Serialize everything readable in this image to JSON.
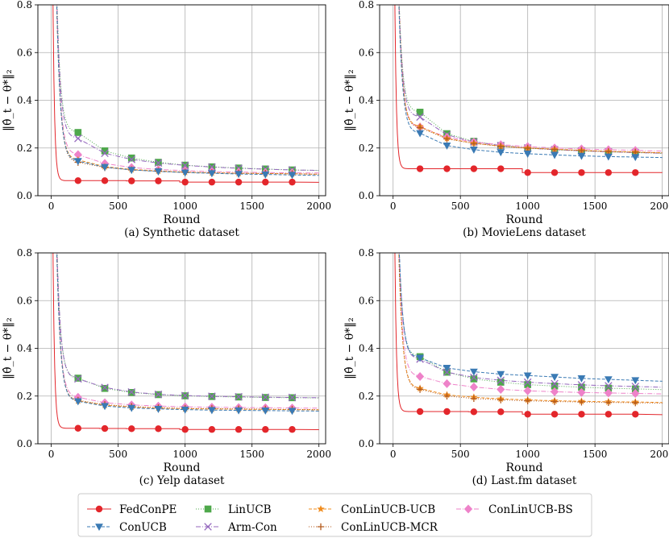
{
  "ylabel": "‖θ̂_t − θ*‖₂",
  "xlabel": "Round",
  "legend": [
    {
      "name": "FedConPE",
      "color": "#e3262b",
      "marker": "circle",
      "dash": ""
    },
    {
      "name": "ConUCB",
      "color": "#3a7ab4",
      "marker": "tri_down",
      "dash": "4,2"
    },
    {
      "name": "LinUCB",
      "color": "#4ea84b",
      "marker": "square",
      "dash": "1,2"
    },
    {
      "name": "Arm-Con",
      "color": "#9467bd",
      "marker": "x",
      "dash": "6,2,1,2"
    },
    {
      "name": "ConLinUCB-UCB",
      "color": "#f08c1e",
      "marker": "star",
      "dash": "4,2"
    },
    {
      "name": "ConLinUCB-MCR",
      "color": "#b35a1c",
      "marker": "plus",
      "dash": "1,2"
    },
    {
      "name": "ConLinUCB-BS",
      "color": "#ee82c9",
      "marker": "diamond",
      "dash": "6,2,1,2"
    }
  ],
  "chart_data": [
    {
      "type": "line",
      "caption": "(a) Synthetic dataset",
      "xlabel": "Round",
      "ylabel": "‖θ̂_t − θ*‖₂",
      "xlim": [
        -100,
        2050
      ],
      "ylim": [
        0,
        0.8
      ],
      "xticks": [
        0,
        500,
        1000,
        1500,
        2000
      ],
      "yticks": [
        0.0,
        0.2,
        0.4,
        0.6,
        0.8
      ],
      "marker_x": [
        200,
        400,
        600,
        800,
        1000,
        1200,
        1400,
        1600,
        1800
      ],
      "series": [
        {
          "name": "FedConPE",
          "values": [
            0.063,
            0.063,
            0.062,
            0.062,
            0.057,
            0.057,
            0.057,
            0.057,
            0.057
          ],
          "end": 0.056
        },
        {
          "name": "ConUCB",
          "values": [
            0.145,
            0.12,
            0.108,
            0.102,
            0.097,
            0.094,
            0.091,
            0.089,
            0.087
          ],
          "end": 0.085
        },
        {
          "name": "LinUCB",
          "values": [
            0.265,
            0.188,
            0.158,
            0.14,
            0.128,
            0.121,
            0.116,
            0.112,
            0.108
          ],
          "end": 0.106
        },
        {
          "name": "Arm-Con",
          "values": [
            0.24,
            0.178,
            0.152,
            0.137,
            0.127,
            0.12,
            0.115,
            0.111,
            0.108
          ],
          "end": 0.106
        },
        {
          "name": "ConLinUCB-UCB",
          "values": [
            0.15,
            0.122,
            0.11,
            0.104,
            0.099,
            0.096,
            0.094,
            0.093,
            0.092
          ],
          "end": 0.09
        },
        {
          "name": "ConLinUCB-MCR",
          "values": [
            0.14,
            0.118,
            0.108,
            0.102,
            0.098,
            0.096,
            0.094,
            0.093,
            0.092
          ],
          "end": 0.09
        },
        {
          "name": "ConLinUCB-BS",
          "values": [
            0.172,
            0.135,
            0.118,
            0.11,
            0.105,
            0.101,
            0.099,
            0.097,
            0.096
          ],
          "end": 0.095
        }
      ]
    },
    {
      "type": "line",
      "caption": "(b) MovieLens dataset",
      "xlabel": "Round",
      "ylabel": "‖θ̂_t − θ*‖₂",
      "xlim": [
        -100,
        2050
      ],
      "ylim": [
        0,
        0.8
      ],
      "xticks": [
        0,
        500,
        1000,
        1500,
        2000
      ],
      "yticks": [
        0.0,
        0.2,
        0.4,
        0.6,
        0.8
      ],
      "marker_x": [
        200,
        400,
        600,
        800,
        1000,
        1200,
        1400,
        1600,
        1800
      ],
      "series": [
        {
          "name": "FedConPE",
          "values": [
            0.113,
            0.113,
            0.113,
            0.113,
            0.097,
            0.097,
            0.097,
            0.097,
            0.097
          ],
          "end": 0.097
        },
        {
          "name": "ConUCB",
          "values": [
            0.262,
            0.21,
            0.193,
            0.182,
            0.176,
            0.171,
            0.167,
            0.164,
            0.162
          ],
          "end": 0.16
        },
        {
          "name": "LinUCB",
          "values": [
            0.35,
            0.26,
            0.228,
            0.21,
            0.2,
            0.193,
            0.188,
            0.184,
            0.181
          ],
          "end": 0.178
        },
        {
          "name": "Arm-Con",
          "values": [
            0.33,
            0.255,
            0.225,
            0.21,
            0.2,
            0.193,
            0.188,
            0.184,
            0.181
          ],
          "end": 0.178
        },
        {
          "name": "ConLinUCB-UCB",
          "values": [
            0.29,
            0.24,
            0.22,
            0.208,
            0.2,
            0.195,
            0.19,
            0.186,
            0.183
          ],
          "end": 0.18
        },
        {
          "name": "ConLinUCB-MCR",
          "values": [
            0.285,
            0.238,
            0.219,
            0.207,
            0.199,
            0.194,
            0.189,
            0.185,
            0.182
          ],
          "end": 0.179
        },
        {
          "name": "ConLinUCB-BS",
          "values": [
            0.288,
            0.245,
            0.225,
            0.214,
            0.206,
            0.2,
            0.196,
            0.193,
            0.19
          ],
          "end": 0.187
        }
      ]
    },
    {
      "type": "line",
      "caption": "(c) Yelp dataset",
      "xlabel": "Round",
      "ylabel": "‖θ̂_t − θ*‖₂",
      "xlim": [
        -100,
        2050
      ],
      "ylim": [
        0,
        0.8
      ],
      "xticks": [
        0,
        500,
        1000,
        1500,
        2000
      ],
      "yticks": [
        0.0,
        0.2,
        0.4,
        0.6,
        0.8
      ],
      "marker_x": [
        200,
        400,
        600,
        800,
        1000,
        1200,
        1400,
        1600,
        1800
      ],
      "series": [
        {
          "name": "FedConPE",
          "values": [
            0.065,
            0.064,
            0.063,
            0.063,
            0.06,
            0.06,
            0.06,
            0.06,
            0.06
          ],
          "end": 0.059
        },
        {
          "name": "ConUCB",
          "values": [
            0.178,
            0.158,
            0.15,
            0.146,
            0.143,
            0.141,
            0.14,
            0.139,
            0.138
          ],
          "end": 0.137
        },
        {
          "name": "LinUCB",
          "values": [
            0.275,
            0.232,
            0.215,
            0.206,
            0.201,
            0.198,
            0.196,
            0.194,
            0.193
          ],
          "end": 0.192
        },
        {
          "name": "Arm-Con",
          "values": [
            0.272,
            0.236,
            0.217,
            0.207,
            0.202,
            0.199,
            0.197,
            0.195,
            0.194
          ],
          "end": 0.193
        },
        {
          "name": "ConLinUCB-UCB",
          "values": [
            0.18,
            0.162,
            0.154,
            0.15,
            0.147,
            0.146,
            0.145,
            0.144,
            0.143
          ],
          "end": 0.142
        },
        {
          "name": "ConLinUCB-MCR",
          "values": [
            0.182,
            0.164,
            0.156,
            0.151,
            0.148,
            0.147,
            0.146,
            0.145,
            0.144
          ],
          "end": 0.143
        },
        {
          "name": "ConLinUCB-BS",
          "values": [
            0.195,
            0.172,
            0.163,
            0.158,
            0.155,
            0.153,
            0.152,
            0.151,
            0.15
          ],
          "end": 0.149
        }
      ]
    },
    {
      "type": "line",
      "caption": "(d) Last.fm dataset",
      "xlabel": "Round",
      "ylabel": "‖θ̂_t − θ*‖₂",
      "xlim": [
        -100,
        2050
      ],
      "ylim": [
        0,
        0.8
      ],
      "xticks": [
        0,
        500,
        1000,
        1500,
        2000
      ],
      "yticks": [
        0.0,
        0.2,
        0.4,
        0.6,
        0.8
      ],
      "marker_x": [
        200,
        400,
        600,
        800,
        1000,
        1200,
        1400,
        1600,
        1800
      ],
      "series": [
        {
          "name": "FedConPE",
          "values": [
            0.135,
            0.135,
            0.134,
            0.134,
            0.124,
            0.124,
            0.124,
            0.124,
            0.124
          ],
          "end": 0.122
        },
        {
          "name": "ConUCB",
          "values": [
            0.36,
            0.318,
            0.302,
            0.292,
            0.286,
            0.28,
            0.274,
            0.27,
            0.266
          ],
          "end": 0.262
        },
        {
          "name": "LinUCB",
          "values": [
            0.365,
            0.3,
            0.272,
            0.258,
            0.248,
            0.242,
            0.237,
            0.233,
            0.23
          ],
          "end": 0.227
        },
        {
          "name": "Arm-Con",
          "values": [
            0.355,
            0.3,
            0.278,
            0.266,
            0.258,
            0.252,
            0.247,
            0.243,
            0.24
          ],
          "end": 0.237
        },
        {
          "name": "ConLinUCB-UCB",
          "values": [
            0.232,
            0.205,
            0.195,
            0.188,
            0.184,
            0.18,
            0.178,
            0.176,
            0.175
          ],
          "end": 0.173
        },
        {
          "name": "ConLinUCB-MCR",
          "values": [
            0.228,
            0.2,
            0.19,
            0.184,
            0.18,
            0.177,
            0.175,
            0.173,
            0.172
          ],
          "end": 0.17
        },
        {
          "name": "ConLinUCB-BS",
          "values": [
            0.282,
            0.252,
            0.238,
            0.228,
            0.222,
            0.218,
            0.215,
            0.213,
            0.211
          ],
          "end": 0.209
        }
      ]
    }
  ]
}
